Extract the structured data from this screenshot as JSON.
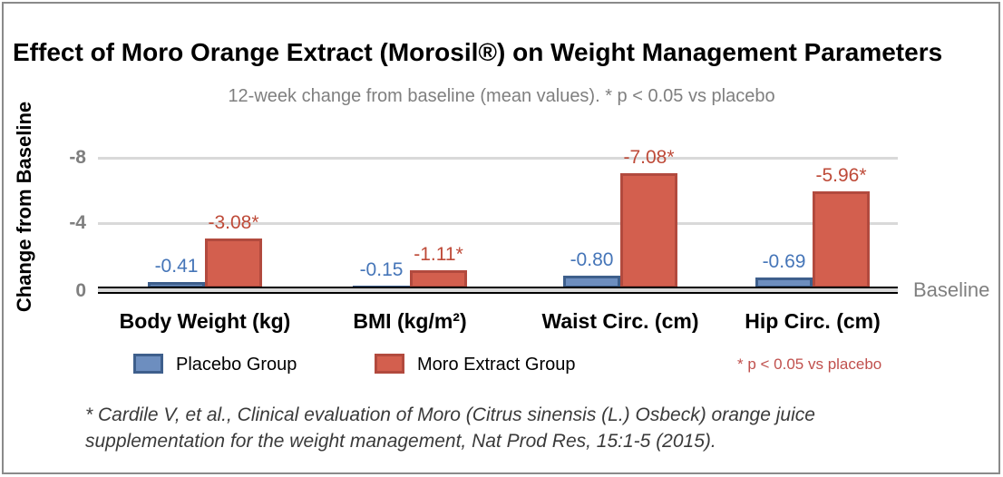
{
  "chart_data": {
    "type": "bar",
    "title": "Effect of Moro Orange Extract (Morosil®) on Weight Management Parameters",
    "subtitle": "12-week change from baseline (mean values). * p < 0.05 vs placebo",
    "categories": [
      "Body Weight (kg)",
      "BMI (kg/m²)",
      "Waist Circ. (cm)",
      "Hip Circ. (cm)"
    ],
    "series": [
      {
        "name": "Placebo Group",
        "color": "#6d8ebf",
        "border_color": "#3e5f8c",
        "label_color": "#4575b8",
        "values": [
          -0.41,
          -0.15,
          -0.8,
          -0.69
        ],
        "data_labels": [
          "-0.41",
          "-0.15",
          "-0.80",
          "-0.69"
        ]
      },
      {
        "name": "Moro Extract Group",
        "color": "#d35f4e",
        "border_color": "#b24a3e",
        "label_color": "#be4a38",
        "values": [
          -3.08,
          -1.11,
          -7.08,
          -5.96
        ],
        "data_labels": [
          "-3.08*",
          "-1.11*",
          "-7.08*",
          "-5.96*"
        ]
      }
    ],
    "y_axis": {
      "label": "Change from Baseline",
      "ticks": [
        {
          "text": "-8",
          "value": -8
        },
        {
          "text": "-4",
          "value": -4
        },
        {
          "text": "0",
          "value": 0
        }
      ],
      "range": [
        0,
        -9
      ],
      "direction": "negative-up",
      "grid": true,
      "gridline_color": "#d9d9d9"
    },
    "baseline_label": "Baseline",
    "legend_position": "bottom"
  },
  "legend": {
    "items": [
      {
        "label": "Placebo Group",
        "color": "#6d8ebf",
        "border_color": "#3e5f8c"
      },
      {
        "label": "Moro Extract Group",
        "color": "#d35f4e",
        "border_color": "#b24a3e"
      }
    ],
    "note": "* p < 0.05 vs placebo",
    "note_color": "#c0504d"
  },
  "footnote": {
    "line1": "* Cardile V, et al., Clinical evaluation of Moro (Citrus sinensis (L.) Osbeck) orange juice",
    "line2": "supplementation for the weight management, Nat Prod Res, 15:1-5 (2015)."
  },
  "frame": {
    "border_color": "#8a8a8a"
  }
}
